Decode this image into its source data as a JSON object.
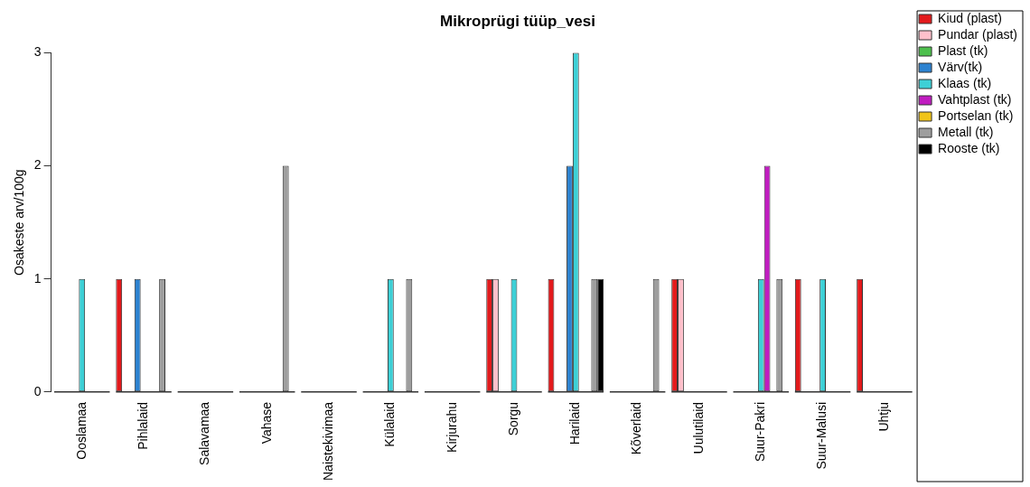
{
  "chart_data": {
    "type": "bar",
    "title": "Mikroprügi tüüp_vesi",
    "ylabel": "Osakeste arv/100g",
    "categories": [
      "Ooslamaa",
      "Pihlalaid",
      "Salavamaa",
      "Vahase",
      "Naistekivimaa",
      "Külalaid",
      "Kirjurahu",
      "Sorgu",
      "Harilaid",
      "Kõverlaid",
      "Uulutilaid",
      "Suur-Pakri",
      "Suur-Malusi",
      "Uhtju"
    ],
    "series": [
      {
        "name": "Kiud (plast)",
        "color": "#e31a1c",
        "values": [
          0,
          1,
          0,
          0,
          0,
          0,
          0,
          1,
          1,
          0,
          1,
          0,
          1,
          1
        ]
      },
      {
        "name": "Pundar (plast)",
        "color": "#ffc0cb",
        "values": [
          0,
          0,
          0,
          0,
          0,
          0,
          0,
          1,
          0,
          0,
          1,
          0,
          0,
          0
        ]
      },
      {
        "name": "Plast (tk)",
        "color": "#4dc04d",
        "values": [
          0,
          0,
          0,
          0,
          0,
          0,
          0,
          0,
          0,
          0,
          0,
          0,
          0,
          0
        ]
      },
      {
        "name": "Värv(tk)",
        "color": "#2c82d0",
        "values": [
          0,
          1,
          0,
          0,
          0,
          0,
          0,
          0,
          2,
          0,
          0,
          0,
          0,
          0
        ]
      },
      {
        "name": "Klaas (tk)",
        "color": "#3dd0d6",
        "values": [
          1,
          0,
          0,
          0,
          0,
          1,
          0,
          1,
          3,
          0,
          0,
          1,
          1,
          0
        ]
      },
      {
        "name": "Vahtplast (tk)",
        "color": "#c01cc0",
        "values": [
          0,
          0,
          0,
          0,
          0,
          0,
          0,
          0,
          0,
          0,
          0,
          2,
          0,
          0
        ]
      },
      {
        "name": "Portselan (tk)",
        "color": "#f0c419",
        "values": [
          0,
          0,
          0,
          0,
          0,
          0,
          0,
          0,
          0,
          0,
          0,
          0,
          0,
          0
        ]
      },
      {
        "name": "Metall (tk)",
        "color": "#9e9e9e",
        "values": [
          0,
          1,
          0,
          2,
          0,
          1,
          0,
          0,
          1,
          1,
          0,
          1,
          0,
          0
        ]
      },
      {
        "name": "Rooste (tk)",
        "color": "#000000",
        "values": [
          0,
          0,
          0,
          0,
          0,
          0,
          0,
          0,
          1,
          0,
          0,
          0,
          0,
          0
        ]
      }
    ],
    "ylim": [
      0,
      3
    ],
    "yticks": [
      0,
      1,
      2,
      3
    ],
    "grid": false,
    "legend": "top right"
  }
}
